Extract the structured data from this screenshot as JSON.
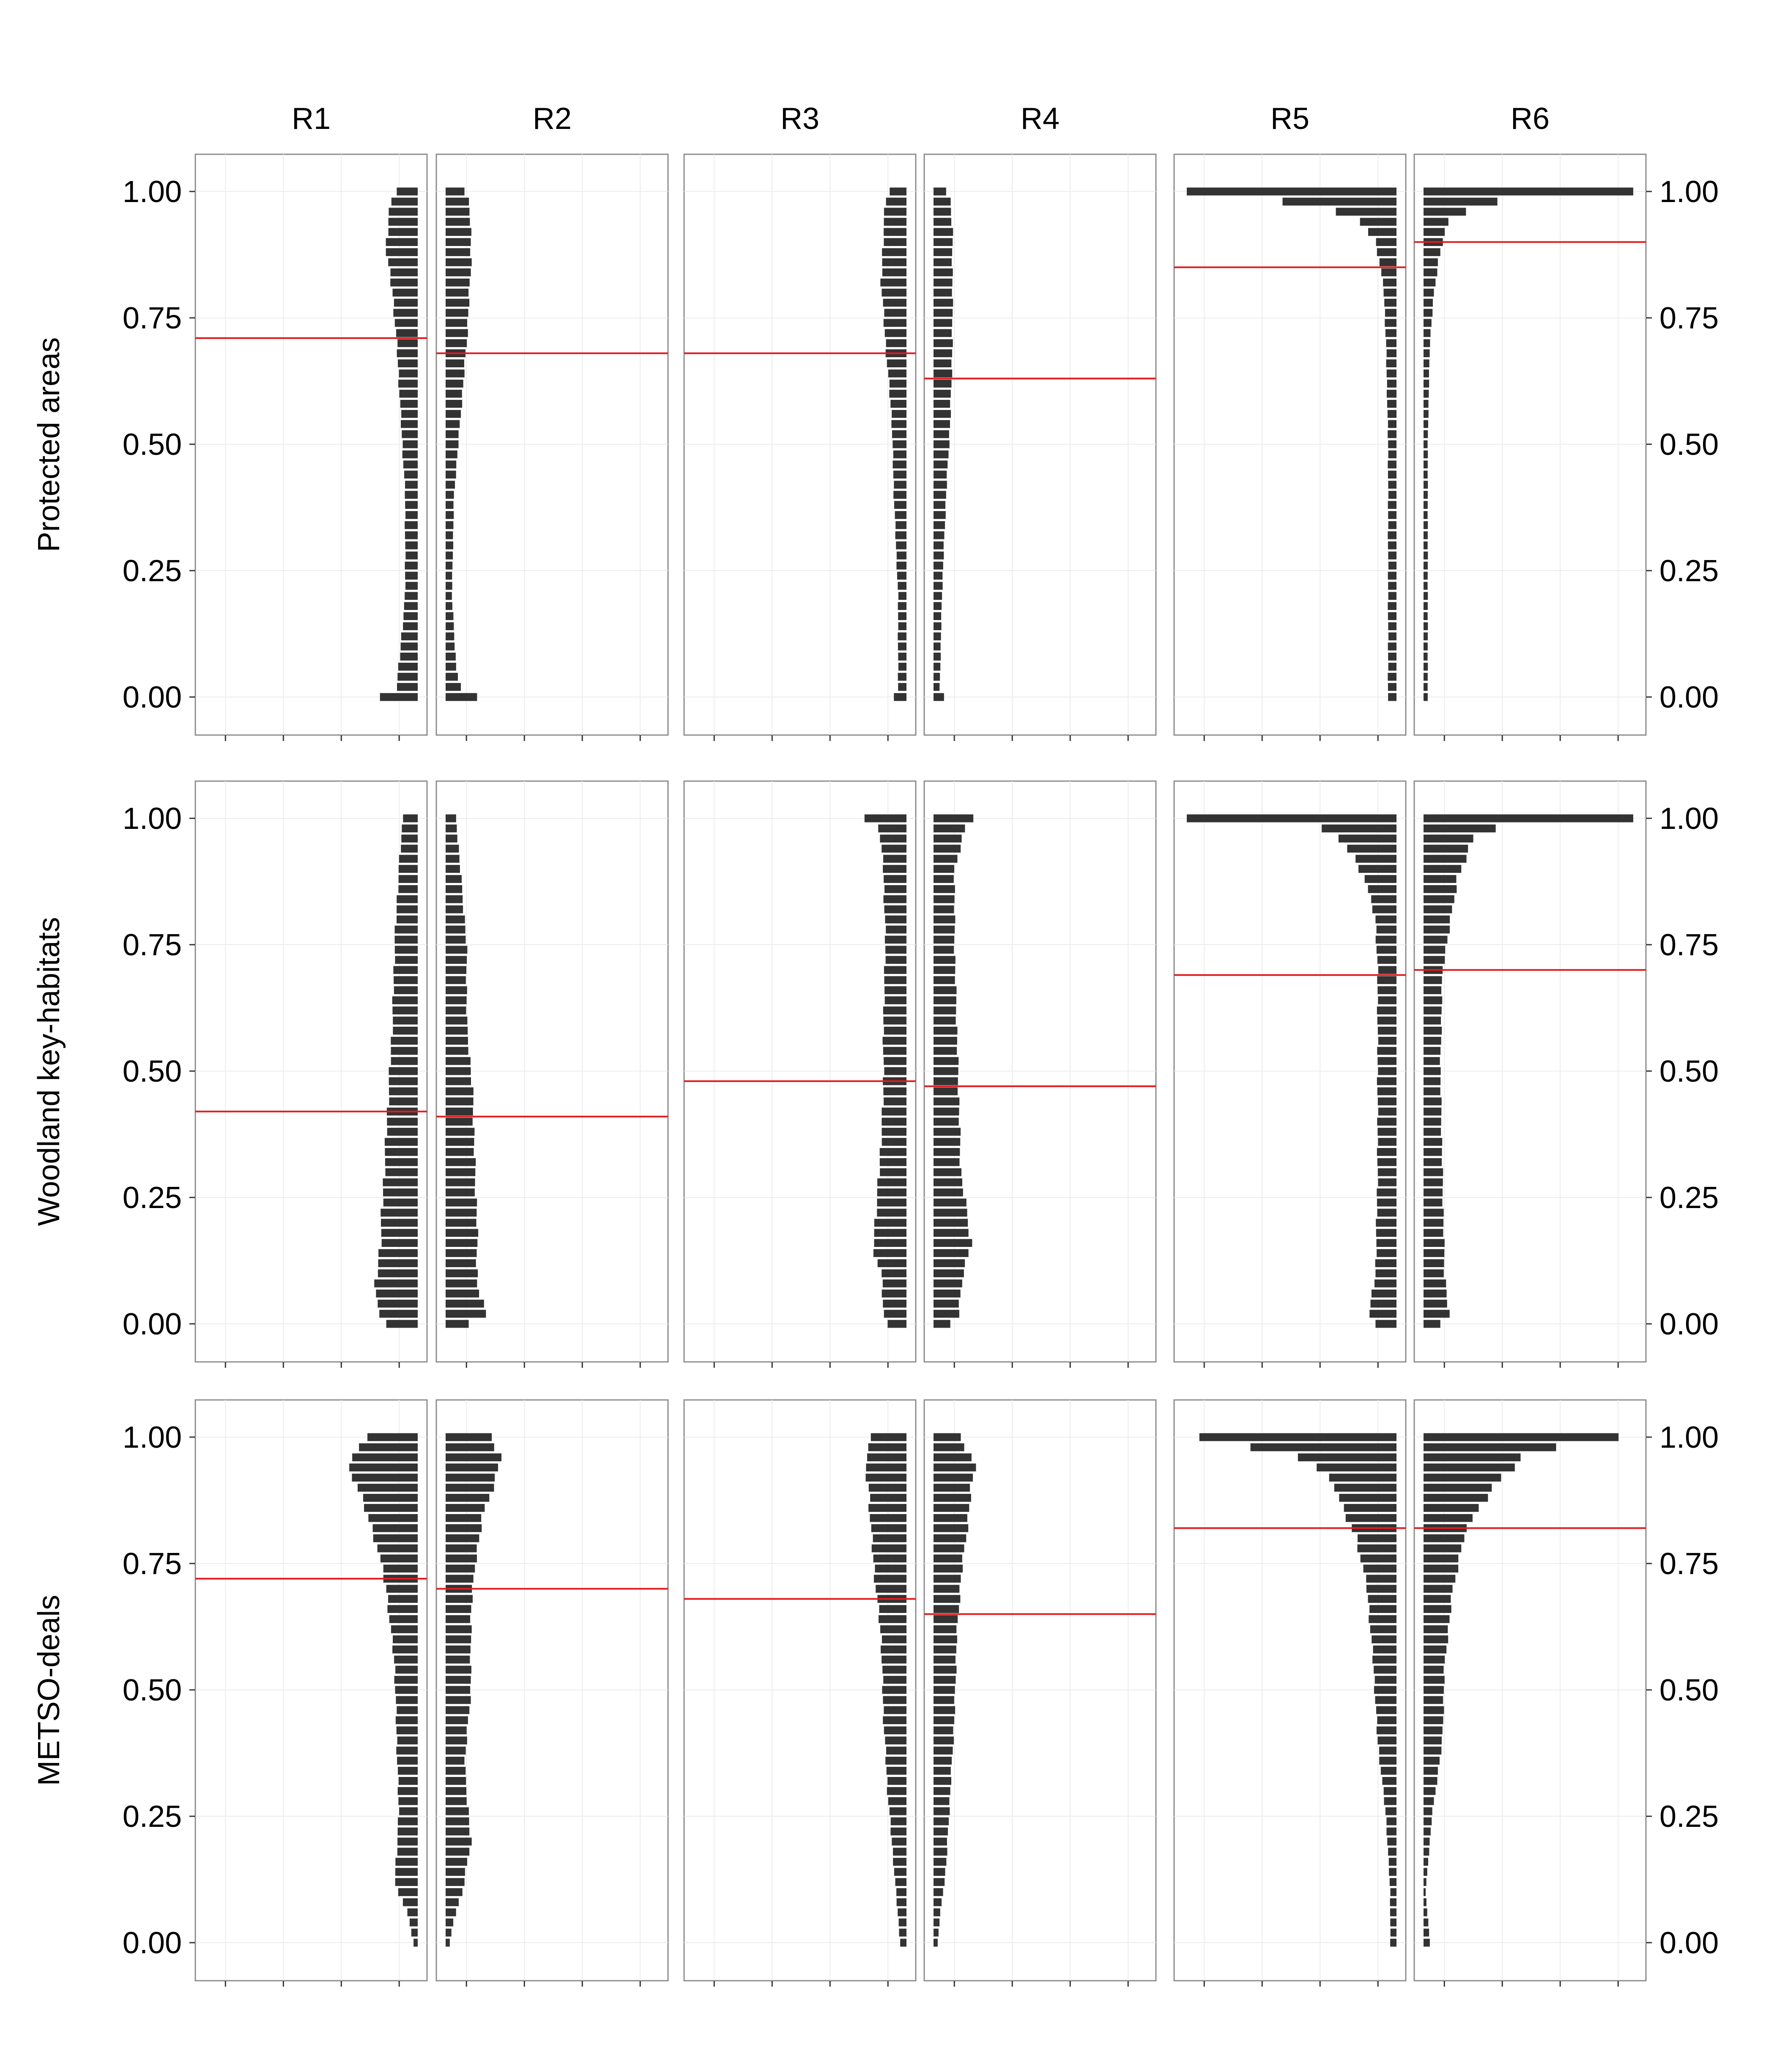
{
  "colors": {
    "bar": "#333333",
    "ref_line": "#e31a1c",
    "panel_border": "#8c8c8c",
    "grid": "#ececec"
  },
  "chart_data": {
    "type": "bar",
    "orientation": "horizontal",
    "layout": "facet grid, 3 rows x 6 columns, columns in pairs with mirrored direction",
    "columns": [
      "R1",
      "R2",
      "R3",
      "R4",
      "R5",
      "R6"
    ],
    "rows": [
      "Protected areas",
      "Woodland key-habitats",
      "METSO-deals"
    ],
    "y_ticks": [
      0.0,
      0.25,
      0.5,
      0.75,
      1.0
    ],
    "y_tick_labels": [
      "0.00",
      "0.25",
      "0.50",
      "0.75",
      "1.00"
    ],
    "ylim": [
      -0.07,
      1.07
    ],
    "x_tick_labels_shown": false,
    "bin_width": 0.02,
    "bar_direction": [
      "left",
      "right",
      "left",
      "right",
      "left",
      "right"
    ],
    "panels": [
      {
        "row": "Protected areas",
        "column": "R1",
        "ref_line": 0.71,
        "profile": [
          [
            0.0,
            0.18
          ],
          [
            0.02,
            0.1
          ],
          [
            0.06,
            0.09
          ],
          [
            0.2,
            0.06
          ],
          [
            0.4,
            0.06
          ],
          [
            0.55,
            0.08
          ],
          [
            0.7,
            0.1
          ],
          [
            0.8,
            0.12
          ],
          [
            0.88,
            0.15
          ],
          [
            0.94,
            0.14
          ],
          [
            0.98,
            0.13
          ],
          [
            1.0,
            0.1
          ]
        ]
      },
      {
        "row": "Protected areas",
        "column": "R2",
        "ref_line": 0.68,
        "profile": [
          [
            0.0,
            0.15
          ],
          [
            0.02,
            0.07
          ],
          [
            0.06,
            0.05
          ],
          [
            0.2,
            0.03
          ],
          [
            0.4,
            0.04
          ],
          [
            0.55,
            0.07
          ],
          [
            0.7,
            0.1
          ],
          [
            0.85,
            0.12
          ],
          [
            0.94,
            0.12
          ],
          [
            0.98,
            0.11
          ],
          [
            1.0,
            0.09
          ]
        ]
      },
      {
        "row": "Protected areas",
        "column": "R3",
        "ref_line": 0.68,
        "profile": [
          [
            0.0,
            0.06
          ],
          [
            0.02,
            0.04
          ],
          [
            0.2,
            0.04
          ],
          [
            0.4,
            0.06
          ],
          [
            0.55,
            0.07
          ],
          [
            0.7,
            0.1
          ],
          [
            0.82,
            0.12
          ],
          [
            0.92,
            0.11
          ],
          [
            0.98,
            0.1
          ],
          [
            1.0,
            0.08
          ]
        ]
      },
      {
        "row": "Protected areas",
        "column": "R4",
        "ref_line": 0.63,
        "profile": [
          [
            0.0,
            0.05
          ],
          [
            0.02,
            0.03
          ],
          [
            0.2,
            0.04
          ],
          [
            0.4,
            0.06
          ],
          [
            0.55,
            0.08
          ],
          [
            0.7,
            0.09
          ],
          [
            0.82,
            0.09
          ],
          [
            0.92,
            0.09
          ],
          [
            0.98,
            0.08
          ],
          [
            1.0,
            0.06
          ]
        ]
      },
      {
        "row": "Protected areas",
        "column": "R5",
        "ref_line": 0.85,
        "profile": [
          [
            0.0,
            0.04
          ],
          [
            0.1,
            0.04
          ],
          [
            0.3,
            0.04
          ],
          [
            0.5,
            0.04
          ],
          [
            0.7,
            0.05
          ],
          [
            0.8,
            0.06
          ],
          [
            0.86,
            0.08
          ],
          [
            0.9,
            0.1
          ],
          [
            0.94,
            0.17
          ],
          [
            0.96,
            0.3
          ],
          [
            0.98,
            0.55
          ],
          [
            1.0,
            1.0
          ]
        ]
      },
      {
        "row": "Protected areas",
        "column": "R6",
        "ref_line": 0.9,
        "profile": [
          [
            0.0,
            0.02
          ],
          [
            0.1,
            0.02
          ],
          [
            0.3,
            0.02
          ],
          [
            0.5,
            0.02
          ],
          [
            0.7,
            0.03
          ],
          [
            0.8,
            0.05
          ],
          [
            0.86,
            0.07
          ],
          [
            0.9,
            0.09
          ],
          [
            0.94,
            0.12
          ],
          [
            0.96,
            0.2
          ],
          [
            0.98,
            0.34
          ],
          [
            1.0,
            1.0
          ]
        ]
      },
      {
        "row": "Woodland key-habitats",
        "column": "R1",
        "ref_line": 0.42,
        "profile": [
          [
            0.0,
            0.15
          ],
          [
            0.02,
            0.19
          ],
          [
            0.08,
            0.2
          ],
          [
            0.15,
            0.18
          ],
          [
            0.3,
            0.16
          ],
          [
            0.45,
            0.14
          ],
          [
            0.6,
            0.12
          ],
          [
            0.75,
            0.11
          ],
          [
            0.9,
            0.09
          ],
          [
            1.0,
            0.07
          ]
        ]
      },
      {
        "row": "Woodland key-habitats",
        "column": "R2",
        "ref_line": 0.41,
        "profile": [
          [
            0.0,
            0.11
          ],
          [
            0.02,
            0.19
          ],
          [
            0.08,
            0.15
          ],
          [
            0.2,
            0.15
          ],
          [
            0.3,
            0.14
          ],
          [
            0.45,
            0.13
          ],
          [
            0.6,
            0.1
          ],
          [
            0.75,
            0.1
          ],
          [
            0.9,
            0.07
          ],
          [
            1.0,
            0.05
          ]
        ]
      },
      {
        "row": "Woodland key-habitats",
        "column": "R3",
        "ref_line": 0.48,
        "profile": [
          [
            0.0,
            0.09
          ],
          [
            0.02,
            0.11
          ],
          [
            0.1,
            0.12
          ],
          [
            0.15,
            0.16
          ],
          [
            0.3,
            0.13
          ],
          [
            0.45,
            0.11
          ],
          [
            0.6,
            0.11
          ],
          [
            0.75,
            0.1
          ],
          [
            0.9,
            0.11
          ],
          [
            0.98,
            0.13
          ],
          [
            1.0,
            0.2
          ]
        ]
      },
      {
        "row": "Woodland key-habitats",
        "column": "R4",
        "ref_line": 0.47,
        "profile": [
          [
            0.0,
            0.08
          ],
          [
            0.02,
            0.12
          ],
          [
            0.1,
            0.14
          ],
          [
            0.16,
            0.18
          ],
          [
            0.3,
            0.13
          ],
          [
            0.45,
            0.12
          ],
          [
            0.6,
            0.11
          ],
          [
            0.75,
            0.1
          ],
          [
            0.9,
            0.1
          ],
          [
            0.98,
            0.15
          ],
          [
            1.0,
            0.19
          ]
        ]
      },
      {
        "row": "Woodland key-habitats",
        "column": "R5",
        "ref_line": 0.69,
        "profile": [
          [
            0.0,
            0.1
          ],
          [
            0.02,
            0.13
          ],
          [
            0.1,
            0.1
          ],
          [
            0.3,
            0.09
          ],
          [
            0.5,
            0.09
          ],
          [
            0.7,
            0.09
          ],
          [
            0.8,
            0.1
          ],
          [
            0.88,
            0.15
          ],
          [
            0.92,
            0.2
          ],
          [
            0.96,
            0.27
          ],
          [
            0.98,
            0.37
          ],
          [
            1.0,
            1.0
          ]
        ]
      },
      {
        "row": "Woodland key-habitats",
        "column": "R6",
        "ref_line": 0.7,
        "profile": [
          [
            0.0,
            0.08
          ],
          [
            0.02,
            0.12
          ],
          [
            0.1,
            0.1
          ],
          [
            0.3,
            0.09
          ],
          [
            0.5,
            0.08
          ],
          [
            0.7,
            0.09
          ],
          [
            0.8,
            0.13
          ],
          [
            0.88,
            0.16
          ],
          [
            0.92,
            0.2
          ],
          [
            0.96,
            0.24
          ],
          [
            0.98,
            0.34
          ],
          [
            1.0,
            1.0
          ]
        ]
      },
      {
        "row": "METSO-deals",
        "column": "R1",
        "ref_line": 0.72,
        "profile": [
          [
            0.0,
            0.02
          ],
          [
            0.06,
            0.05
          ],
          [
            0.12,
            0.11
          ],
          [
            0.25,
            0.09
          ],
          [
            0.4,
            0.1
          ],
          [
            0.55,
            0.11
          ],
          [
            0.7,
            0.15
          ],
          [
            0.78,
            0.19
          ],
          [
            0.86,
            0.25
          ],
          [
            0.92,
            0.31
          ],
          [
            0.96,
            0.32
          ],
          [
            1.0,
            0.24
          ]
        ]
      },
      {
        "row": "METSO-deals",
        "column": "R2",
        "ref_line": 0.7,
        "profile": [
          [
            0.0,
            0.02
          ],
          [
            0.05,
            0.04
          ],
          [
            0.1,
            0.08
          ],
          [
            0.2,
            0.12
          ],
          [
            0.35,
            0.09
          ],
          [
            0.5,
            0.12
          ],
          [
            0.65,
            0.12
          ],
          [
            0.75,
            0.14
          ],
          [
            0.85,
            0.18
          ],
          [
            0.92,
            0.24
          ],
          [
            0.96,
            0.26
          ],
          [
            1.0,
            0.22
          ]
        ]
      },
      {
        "row": "METSO-deals",
        "column": "R3",
        "ref_line": 0.68,
        "profile": [
          [
            0.0,
            0.03
          ],
          [
            0.05,
            0.04
          ],
          [
            0.15,
            0.06
          ],
          [
            0.3,
            0.09
          ],
          [
            0.45,
            0.11
          ],
          [
            0.6,
            0.12
          ],
          [
            0.72,
            0.15
          ],
          [
            0.82,
            0.17
          ],
          [
            0.9,
            0.18
          ],
          [
            0.94,
            0.2
          ],
          [
            0.98,
            0.18
          ],
          [
            1.0,
            0.17
          ]
        ]
      },
      {
        "row": "METSO-deals",
        "column": "R4",
        "ref_line": 0.65,
        "profile": [
          [
            0.0,
            0.02
          ],
          [
            0.05,
            0.03
          ],
          [
            0.15,
            0.06
          ],
          [
            0.3,
            0.08
          ],
          [
            0.45,
            0.1
          ],
          [
            0.6,
            0.11
          ],
          [
            0.72,
            0.13
          ],
          [
            0.82,
            0.16
          ],
          [
            0.9,
            0.18
          ],
          [
            0.94,
            0.2
          ],
          [
            0.98,
            0.15
          ],
          [
            1.0,
            0.13
          ]
        ]
      },
      {
        "row": "METSO-deals",
        "column": "R5",
        "ref_line": 0.82,
        "profile": [
          [
            0.0,
            0.03
          ],
          [
            0.1,
            0.03
          ],
          [
            0.25,
            0.05
          ],
          [
            0.4,
            0.09
          ],
          [
            0.55,
            0.11
          ],
          [
            0.7,
            0.14
          ],
          [
            0.8,
            0.19
          ],
          [
            0.86,
            0.26
          ],
          [
            0.92,
            0.31
          ],
          [
            0.96,
            0.47
          ],
          [
            0.98,
            0.68
          ],
          [
            1.0,
            0.94
          ]
        ]
      },
      {
        "row": "METSO-deals",
        "column": "R6",
        "ref_line": 0.82,
        "profile": [
          [
            0.0,
            0.03
          ],
          [
            0.1,
            0.01
          ],
          [
            0.25,
            0.04
          ],
          [
            0.4,
            0.09
          ],
          [
            0.55,
            0.1
          ],
          [
            0.7,
            0.14
          ],
          [
            0.8,
            0.19
          ],
          [
            0.86,
            0.26
          ],
          [
            0.92,
            0.37
          ],
          [
            0.96,
            0.48
          ],
          [
            0.98,
            0.64
          ],
          [
            1.0,
            0.93
          ]
        ]
      }
    ]
  }
}
